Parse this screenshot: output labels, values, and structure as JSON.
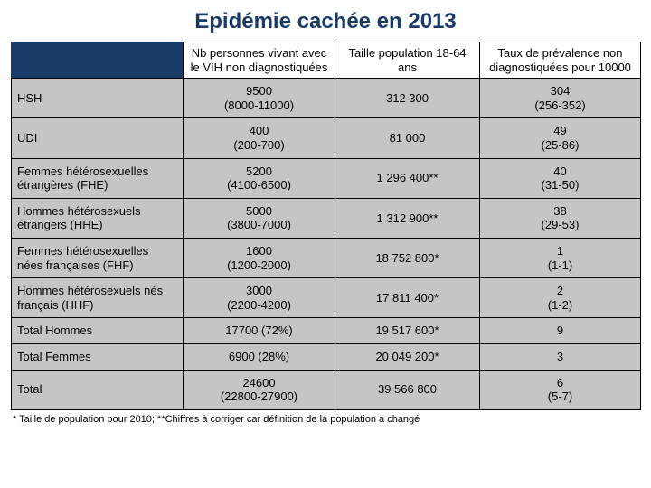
{
  "title": "Epidémie cachée en 2013",
  "table": {
    "columns": [
      "",
      "Nb personnes vivant avec le VIH non diagnostiquées",
      "Taille population 18-64 ans",
      "Taux de prévalence non diagnostiquées pour 10000"
    ],
    "rows": [
      {
        "label": "HSH",
        "n": "9500",
        "n_ci": "(8000-11000)",
        "pop": "312 300",
        "rate": "304",
        "rate_ci": "(256-352)"
      },
      {
        "label": "UDI",
        "n": "400",
        "n_ci": "(200-700)",
        "pop": "81 000",
        "rate": "49",
        "rate_ci": "(25-86)"
      },
      {
        "label": "Femmes hétérosexuelles étrangères (FHE)",
        "n": "5200",
        "n_ci": "(4100-6500)",
        "pop": "1 296 400**",
        "rate": "40",
        "rate_ci": "(31-50)"
      },
      {
        "label": "Hommes hétérosexuels étrangers (HHE)",
        "n": "5000",
        "n_ci": "(3800-7000)",
        "pop": "1 312 900**",
        "rate": "38",
        "rate_ci": "(29-53)"
      },
      {
        "label": "Femmes hétérosexuelles nées françaises (FHF)",
        "n": "1600",
        "n_ci": "(1200-2000)",
        "pop": "18 752 800*",
        "rate": "1",
        "rate_ci": "(1-1)"
      },
      {
        "label": "Hommes hétérosexuels nés français (HHF)",
        "n": "3000",
        "n_ci": "(2200-4200)",
        "pop": "17 811 400*",
        "rate": "2",
        "rate_ci": "(1-2)"
      },
      {
        "label": "Total Hommes",
        "n": "17700 (72%)",
        "n_ci": "",
        "pop": "19 517 600*",
        "rate": "9",
        "rate_ci": ""
      },
      {
        "label": "Total Femmes",
        "n": "6900 (28%)",
        "n_ci": "",
        "pop": "20 049 200*",
        "rate": "3",
        "rate_ci": ""
      },
      {
        "label": "Total",
        "n": "24600",
        "n_ci": "(22800-27900)",
        "pop": "39 566 800",
        "rate": "6",
        "rate_ci": "(5-7)"
      }
    ]
  },
  "footnote": "* Taille de population pour 2010; **Chiffres à corriger car définition de la population a changé",
  "colors": {
    "title": "#193b68",
    "header_first_bg": "#193b68",
    "row_bg": "#c5c5c5",
    "border": "#000000",
    "background": "#ffffff"
  },
  "fonts": {
    "title_pt": 24,
    "cell_pt": 13,
    "footnote_pt": 11
  }
}
